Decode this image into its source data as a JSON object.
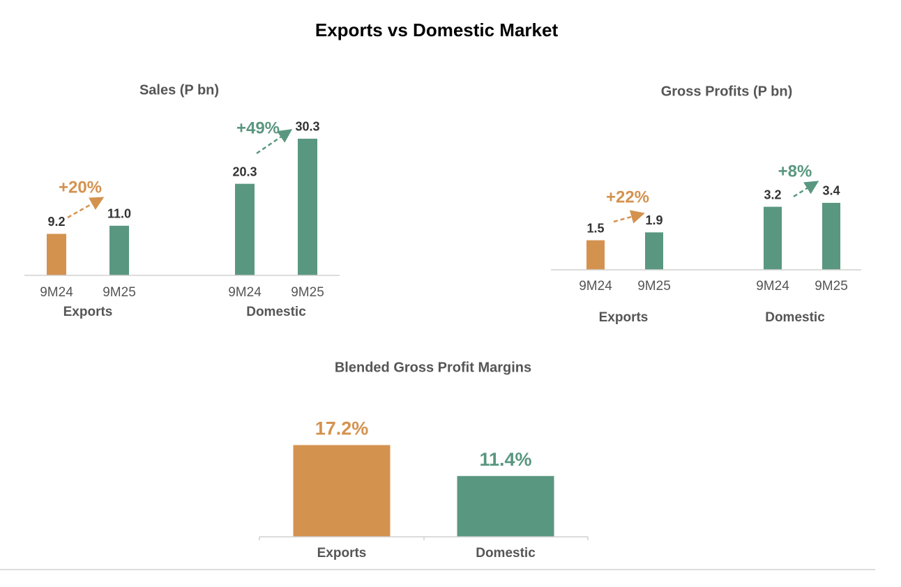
{
  "title": "Exports vs Domestic Market",
  "chart_data": [
    {
      "type": "bar",
      "title": "Sales (P bn)",
      "categories": [
        "9M24",
        "9M25",
        "9M24",
        "9M25"
      ],
      "groups": [
        "Exports",
        "Domestic"
      ],
      "values": [
        9.2,
        11.0,
        20.3,
        30.3
      ],
      "value_labels": [
        "9.2",
        "11.0",
        "20.3",
        "30.3"
      ],
      "colors": [
        "#d4924f",
        "#5a9780",
        "#5a9780",
        "#5a9780"
      ],
      "ylim": [
        0,
        34
      ],
      "annotations": [
        {
          "text": "+20%",
          "color": "#d4924f"
        },
        {
          "text": "+49%",
          "color": "#5a9780"
        }
      ]
    },
    {
      "type": "bar",
      "title": "Gross Profits (P bn)",
      "categories": [
        "9M24",
        "9M25",
        "9M24",
        "9M25"
      ],
      "groups": [
        "Exports",
        "Domestic"
      ],
      "values": [
        1.5,
        1.9,
        3.2,
        3.4
      ],
      "colors": [
        "#d4924f",
        "#5a9780",
        "#5a9780",
        "#5a9780"
      ],
      "ylim": [
        0,
        4
      ],
      "annotations": [
        {
          "text": "+22%",
          "color": "#d4924f"
        },
        {
          "text": "+8%",
          "color": "#5a9780"
        }
      ]
    },
    {
      "type": "bar",
      "title": "Blended Gross Profit Margins",
      "categories": [
        "Exports",
        "Domestic"
      ],
      "values": [
        17.2,
        11.4
      ],
      "value_labels": [
        "17.2%",
        "11.4%"
      ],
      "colors": [
        "#d4924f",
        "#5a9780"
      ],
      "ylim": [
        0,
        20
      ]
    }
  ]
}
